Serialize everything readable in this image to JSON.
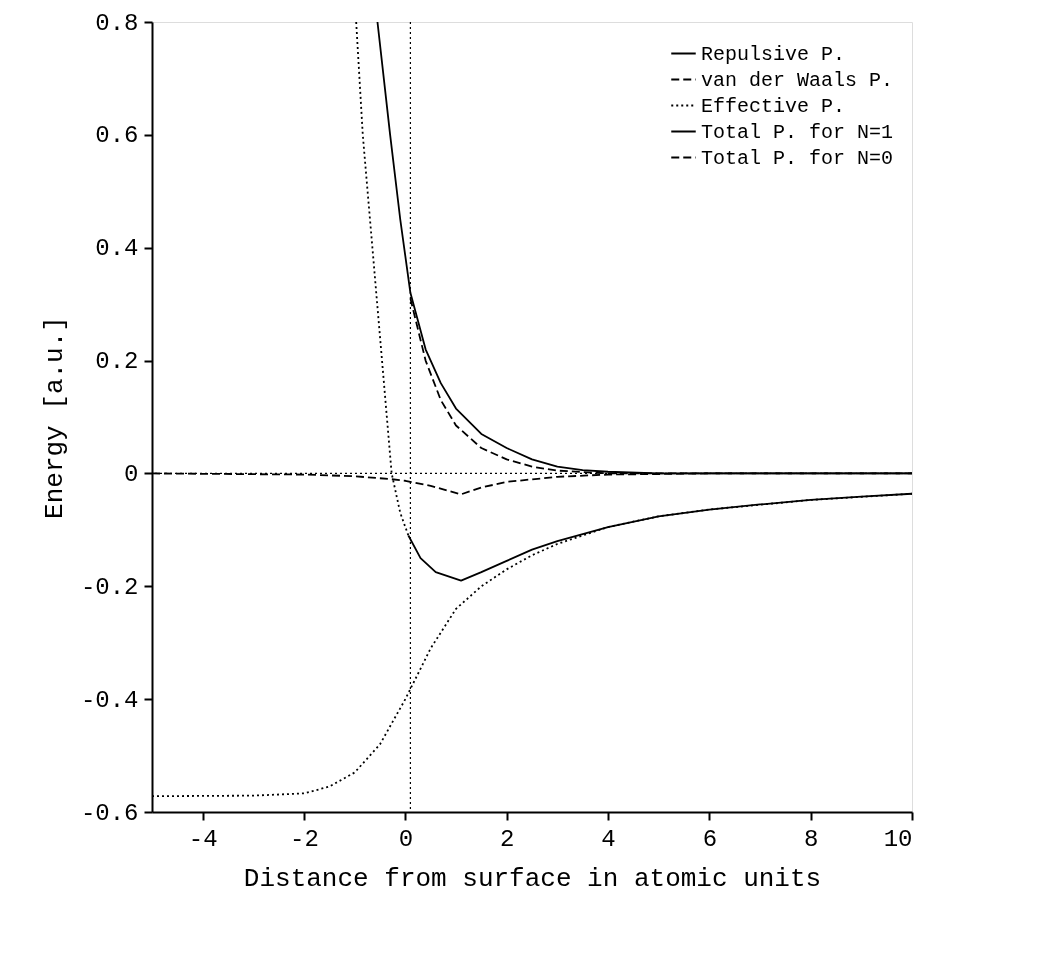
{
  "chart_data": {
    "type": "line",
    "xlabel": "Distance from surface in atomic units",
    "ylabel": "Energy [a.u.]",
    "xlim": [
      -5,
      10
    ],
    "xticks": [
      -4,
      -2,
      0,
      2,
      4,
      6,
      8,
      10
    ],
    "ylim": [
      -0.6,
      0.8
    ],
    "yticks": [
      -0.6,
      -0.4,
      -0.2,
      0,
      0.2,
      0.4,
      0.6,
      0.8
    ],
    "grid": false,
    "legend": "top right",
    "marker": "none",
    "series": [
      {
        "name": "Repulsive P.",
        "color": "#000000",
        "line_style": "solid",
        "x": [
          -0.55,
          -0.3,
          -0.1,
          0.1,
          0.4,
          0.7,
          1,
          1.5,
          2,
          2.5,
          3,
          3.5,
          4,
          5,
          10
        ],
        "values": [
          0.8,
          0.6,
          0.45,
          0.32,
          0.22,
          0.16,
          0.115,
          0.07,
          0.045,
          0.025,
          0.012,
          0.006,
          0.003,
          0,
          0
        ]
      },
      {
        "name": "van der Waals P.",
        "color": "#000000",
        "line_style": "dashed",
        "x": [
          -5,
          -2,
          -1,
          -0.3,
          0,
          0.5,
          1.1,
          1.5,
          2,
          3,
          4,
          6,
          10
        ],
        "values": [
          0,
          -0.002,
          -0.005,
          -0.01,
          -0.013,
          -0.022,
          -0.037,
          -0.025,
          -0.015,
          -0.006,
          -0.002,
          0,
          0
        ]
      },
      {
        "name": "Effective P.",
        "color": "#000000",
        "line_style": "dotted",
        "x": [
          -5,
          -3,
          -2,
          -1.5,
          -1,
          -0.5,
          0,
          0.5,
          1,
          1.5,
          2,
          2.5,
          3,
          4,
          5,
          6,
          8,
          10
        ],
        "values": [
          -0.572,
          -0.571,
          -0.567,
          -0.555,
          -0.53,
          -0.48,
          -0.4,
          -0.31,
          -0.24,
          -0.2,
          -0.17,
          -0.145,
          -0.125,
          -0.095,
          -0.076,
          -0.064,
          -0.047,
          -0.036
        ]
      },
      {
        "name": "Total P. for N=1",
        "color": "#000000",
        "line_style": "solid",
        "x": [
          0.06,
          0.3,
          0.6,
          1.1,
          1.5,
          2,
          2.5,
          3,
          4,
          5,
          6,
          7,
          8,
          9,
          10
        ],
        "values": [
          -0.11,
          -0.15,
          -0.175,
          -0.19,
          -0.175,
          -0.155,
          -0.135,
          -0.12,
          -0.095,
          -0.076,
          -0.064,
          -0.055,
          -0.047,
          -0.041,
          -0.036
        ]
      },
      {
        "name": "Total P. for N=0",
        "color": "#000000",
        "line_style": "dashed",
        "x": [
          0.1,
          0.4,
          0.7,
          1,
          1.5,
          2,
          2.5,
          3,
          4,
          10
        ],
        "values": [
          0.31,
          0.2,
          0.13,
          0.085,
          0.045,
          0.025,
          0.012,
          0.005,
          0,
          0
        ]
      },
      {
        "color": "#000000",
        "line_style": "dotted",
        "x": [
          -0.97,
          -0.84,
          -0.65,
          -0.46,
          -0.27,
          -0.1,
          0.06
        ],
        "values": [
          0.8,
          0.6,
          0.4,
          0.2,
          0,
          -0.07,
          -0.11
        ]
      }
    ],
    "ref_lines": [
      {
        "axis": "x",
        "value": 0.1,
        "color": "#000000",
        "line_style": "dotted"
      },
      {
        "axis": "y",
        "value": 0,
        "color": "#000000",
        "line_style": "dotted"
      }
    ]
  }
}
